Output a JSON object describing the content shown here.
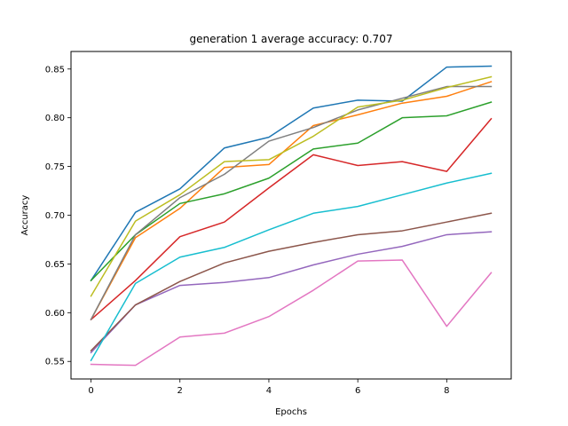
{
  "chart_data": {
    "type": "line",
    "title": "generation 1 average accuracy: 0.707",
    "xlabel": "Epochs",
    "ylabel": "Accuracy",
    "xlim": [
      -0.45,
      9.45
    ],
    "ylim": [
      0.532,
      0.868
    ],
    "xticks": [
      0,
      2,
      4,
      6,
      8
    ],
    "yticks": [
      0.55,
      0.6,
      0.65,
      0.7,
      0.75,
      0.8,
      0.85
    ],
    "grid": false,
    "legend": "none",
    "x": [
      0,
      1,
      2,
      3,
      4,
      5,
      6,
      7,
      8,
      9
    ],
    "series": [
      {
        "color": "#1f77b4",
        "values": [
          0.633,
          0.703,
          0.727,
          0.769,
          0.78,
          0.81,
          0.818,
          0.817,
          0.852,
          0.853
        ]
      },
      {
        "color": "#ff7f0e",
        "values": [
          0.593,
          0.677,
          0.707,
          0.749,
          0.752,
          0.792,
          0.803,
          0.815,
          0.822,
          0.837
        ]
      },
      {
        "color": "#2ca02c",
        "values": [
          0.633,
          0.68,
          0.712,
          0.722,
          0.738,
          0.768,
          0.774,
          0.8,
          0.802,
          0.816
        ]
      },
      {
        "color": "#d62728",
        "values": [
          0.593,
          0.633,
          0.678,
          0.693,
          0.728,
          0.762,
          0.751,
          0.755,
          0.745,
          0.799
        ]
      },
      {
        "color": "#9467bd",
        "values": [
          0.559,
          0.608,
          0.628,
          0.631,
          0.636,
          0.649,
          0.66,
          0.668,
          0.68,
          0.683
        ]
      },
      {
        "color": "#8c564b",
        "values": [
          0.561,
          0.608,
          0.632,
          0.651,
          0.663,
          0.672,
          0.68,
          0.684,
          0.693,
          0.702
        ]
      },
      {
        "color": "#e377c2",
        "values": [
          0.547,
          0.546,
          0.575,
          0.579,
          0.596,
          0.623,
          0.653,
          0.654,
          0.586,
          0.641
        ]
      },
      {
        "color": "#7f7f7f",
        "values": [
          0.593,
          0.68,
          0.718,
          0.742,
          0.776,
          0.79,
          0.808,
          0.82,
          0.832,
          0.832
        ]
      },
      {
        "color": "#bcbd22",
        "values": [
          0.617,
          0.694,
          0.721,
          0.755,
          0.757,
          0.781,
          0.811,
          0.818,
          0.831,
          0.842
        ]
      },
      {
        "color": "#17becf",
        "values": [
          0.551,
          0.63,
          0.657,
          0.667,
          0.685,
          0.702,
          0.709,
          0.721,
          0.733,
          0.743
        ]
      }
    ]
  }
}
